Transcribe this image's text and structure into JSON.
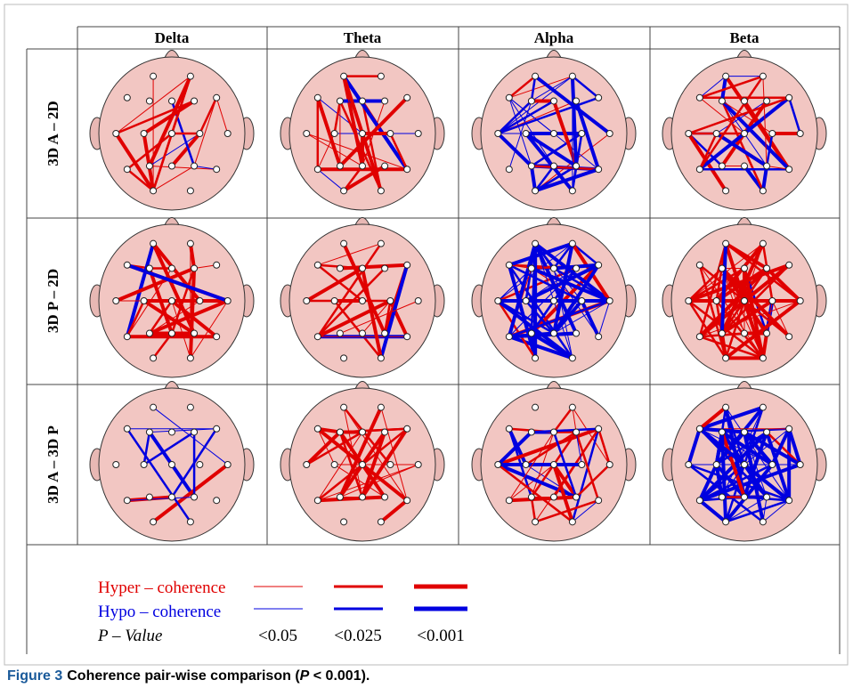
{
  "table": {
    "columns": [
      "Delta",
      "Theta",
      "Alpha",
      "Beta"
    ],
    "rows": [
      "3D A – 2D",
      "3D P – 2D",
      "3D A – 3D P"
    ]
  },
  "legend": {
    "hyper": "Hyper – coherence",
    "hypo": "Hypo – coherence",
    "p_label": "P – Value",
    "thresholds": [
      "<0.05",
      "<0.025",
      "<0.001"
    ]
  },
  "caption": {
    "label": "Figure 3",
    "text": "Coherence pair-wise comparison (",
    "p": "P",
    "rest": " < 0.001)."
  }
}
